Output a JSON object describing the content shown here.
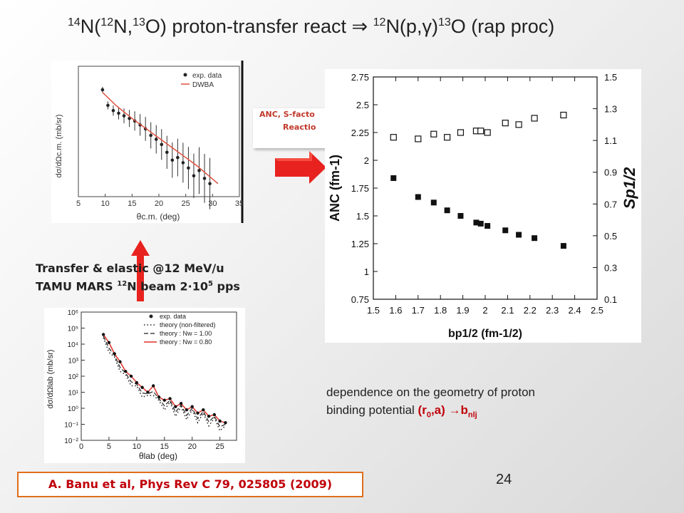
{
  "slide": {
    "title_parts": [
      "14",
      "N(",
      "12",
      "N,",
      "13",
      "O) proton-transfer react ",
      "⇒",
      " ",
      "12",
      "N(p,",
      "γ",
      ")",
      "13",
      "O (rap proc)"
    ],
    "note_line1": "Transfer & elastic @12 MeV/u",
    "note_line2_a": "TAMU MARS ",
    "note_line2_sup": "12",
    "note_line2_b": "N beam 2",
    "note_line2_dot": "·",
    "note_line2_c": "10",
    "note_line2_exp": "5",
    "note_line2_d": " pps",
    "callout_line1": "ANC, S-facto",
    "callout_line2": "Reactio",
    "desc_line1": " dependence on the geometry of proton",
    "desc_line2_a": "binding potential ",
    "desc_line2_red": "(r",
    "desc_line2_sub0": "0",
    "desc_line2_red2": ",a) →b",
    "desc_line2_sub": "nlj",
    "reference": "A. Banu et al, Phys Rev C 79, 025805 (2009)",
    "page_number": "24"
  },
  "colors": {
    "arrow_red": "#e8231f",
    "ref_border": "#e06e1a",
    "dwba_line": "#e05040",
    "theory_red": "#e0302a"
  },
  "chart_data": [
    {
      "type": "scatter",
      "title": "",
      "xlabel": "θc.m. (deg)",
      "ylabel": "dσ/dΩc.m. (mb/sr)",
      "x_ticks": [
        "5",
        "10",
        "15",
        "20",
        "25",
        "30",
        "35"
      ],
      "legend": [
        "exp. data",
        "DWBA"
      ],
      "legend_position": "top-right",
      "xlim": [
        5,
        35
      ],
      "series": [
        {
          "name": "exp. data",
          "x": [
            9.5,
            10.5,
            11.5,
            12.5,
            13.5,
            14.5,
            15.5,
            16.5,
            17.5,
            18.5,
            19.5,
            20.5,
            21.5,
            22.5,
            23.5,
            24.5,
            25.5,
            26.5,
            27.5,
            28.5,
            29.5
          ],
          "y": [
            0.82,
            0.7,
            0.66,
            0.64,
            0.62,
            0.6,
            0.58,
            0.55,
            0.52,
            0.47,
            0.44,
            0.4,
            0.34,
            0.28,
            0.3,
            0.26,
            0.22,
            0.16,
            0.2,
            0.14,
            0.1
          ]
        },
        {
          "name": "DWBA",
          "x": [
            9.5,
            12,
            15,
            18,
            21,
            24,
            27,
            31
          ],
          "y": [
            0.8,
            0.7,
            0.6,
            0.51,
            0.42,
            0.33,
            0.24,
            0.1
          ]
        }
      ]
    },
    {
      "type": "line",
      "title": "",
      "xlabel": "θlab (deg)",
      "ylabel": "dσ/dΩlab (mb/sr)",
      "x_ticks": [
        "0",
        "5",
        "10",
        "15",
        "20",
        "25"
      ],
      "y_ticks": [
        "10⁻²",
        "10⁻¹",
        "10⁰",
        "10¹",
        "10²",
        "10³",
        "10⁴",
        "10⁵",
        "10⁶"
      ],
      "legend": [
        "exp. data",
        "theory (non-filtered)",
        "theory : Nw = 1.00",
        "theory : Nw = 0.80"
      ],
      "legend_position": "top-right",
      "xlim": [
        0,
        28
      ],
      "ylim_log10": [
        -2,
        6
      ],
      "series": [
        {
          "name": "exp. data",
          "x": [
            4,
            5,
            6,
            7,
            8,
            9,
            10,
            11,
            12,
            13,
            14,
            15,
            16,
            17,
            18,
            19,
            20,
            21,
            22,
            23,
            24,
            25,
            26
          ],
          "y_log10": [
            4.6,
            4.1,
            3.4,
            2.9,
            2.3,
            2.0,
            1.6,
            1.3,
            1.0,
            1.4,
            0.7,
            0.5,
            0.6,
            0.1,
            0.3,
            -0.1,
            0.1,
            -0.3,
            -0.1,
            -0.5,
            -0.4,
            -0.8,
            -0.9
          ]
        }
      ]
    },
    {
      "type": "scatter",
      "title": "",
      "xlabel": "bp1/2 (fm-1/2)",
      "ylabel": "ANC (fm-1)",
      "y2label": "Sp1/2",
      "x_ticks": [
        "1.5",
        "1.6",
        "1.7",
        "1.8",
        "1.9",
        "2",
        "2.1",
        "2.2",
        "2.3",
        "2.4",
        "2.5"
      ],
      "y_ticks": [
        "0.75",
        "1",
        "1.25",
        "1.5",
        "1.75",
        "2",
        "2.25",
        "2.5",
        "2.75"
      ],
      "y2_ticks": [
        "0.1",
        "0.3",
        "0.5",
        "0.7",
        "0.9",
        "1.1",
        "1.3",
        "1.5"
      ],
      "xlim": [
        1.5,
        2.5
      ],
      "ylim": [
        0.75,
        2.75
      ],
      "y2lim": [
        0.1,
        1.5
      ],
      "series": [
        {
          "name": "",
          "marker": "open-square",
          "axis": "right",
          "x": [
            1.59,
            1.7,
            1.77,
            1.83,
            1.89,
            1.96,
            1.98,
            2.01,
            2.09,
            2.15,
            2.22,
            2.35
          ],
          "y": [
            1.12,
            1.11,
            1.14,
            1.12,
            1.15,
            1.16,
            1.16,
            1.15,
            1.21,
            1.2,
            1.24,
            1.26
          ]
        },
        {
          "name": "",
          "marker": "filled-square",
          "axis": "left",
          "x": [
            1.59,
            1.7,
            1.77,
            1.83,
            1.89,
            1.96,
            1.98,
            2.01,
            2.09,
            2.15,
            2.22,
            2.35
          ],
          "y": [
            1.84,
            1.67,
            1.62,
            1.55,
            1.5,
            1.44,
            1.43,
            1.41,
            1.37,
            1.33,
            1.3,
            1.23
          ]
        }
      ]
    }
  ]
}
